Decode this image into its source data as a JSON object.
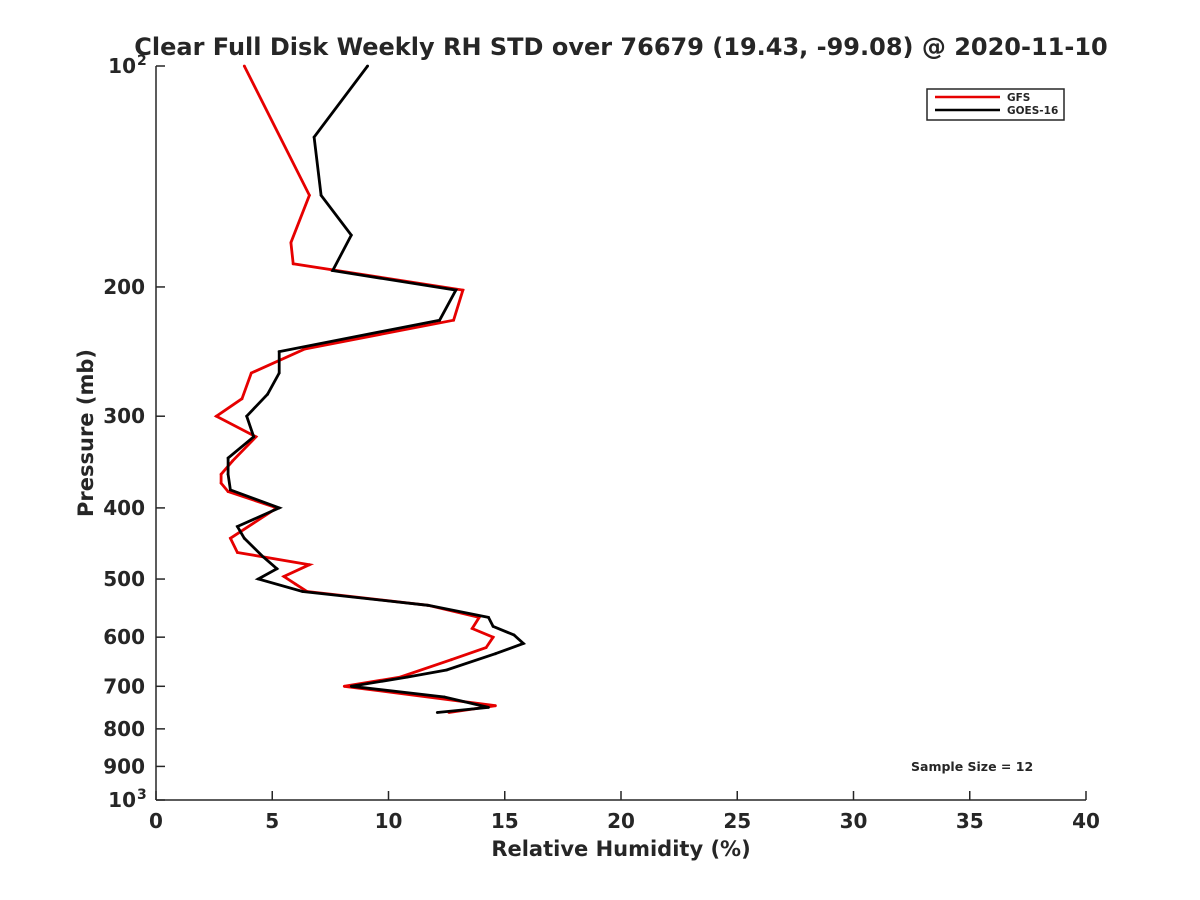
{
  "chart_data": {
    "type": "line",
    "title": "Clear Full Disk Weekly RH STD over 76679 (19.43, -99.08) @ 2020-11-10",
    "xlabel": "Relative Humidity (%)",
    "ylabel": "Pressure (mb)",
    "xlim": [
      0,
      40
    ],
    "ylim": [
      100,
      1000
    ],
    "y_scale": "log",
    "y_reversed": true,
    "x_ticks": [
      {
        "value": 0,
        "label": "0"
      },
      {
        "value": 5,
        "label": "5"
      },
      {
        "value": 10,
        "label": "10"
      },
      {
        "value": 15,
        "label": "15"
      },
      {
        "value": 20,
        "label": "20"
      },
      {
        "value": 25,
        "label": "25"
      },
      {
        "value": 30,
        "label": "30"
      },
      {
        "value": 35,
        "label": "35"
      },
      {
        "value": 40,
        "label": "40"
      }
    ],
    "y_ticks": [
      {
        "value": 100,
        "label": "10",
        "sup": "2"
      },
      {
        "value": 200,
        "label": "200",
        "sup": ""
      },
      {
        "value": 300,
        "label": "300",
        "sup": ""
      },
      {
        "value": 400,
        "label": "400",
        "sup": ""
      },
      {
        "value": 500,
        "label": "500",
        "sup": ""
      },
      {
        "value": 600,
        "label": "600",
        "sup": ""
      },
      {
        "value": 700,
        "label": "700",
        "sup": ""
      },
      {
        "value": 800,
        "label": "800",
        "sup": ""
      },
      {
        "value": 900,
        "label": "900",
        "sup": ""
      },
      {
        "value": 1000,
        "label": "10",
        "sup": "3"
      }
    ],
    "grid": false,
    "legend_position": "top-right",
    "annotation": "Sample Size = 12",
    "series": [
      {
        "name": "GFS",
        "color": "#e60000",
        "points": [
          [
            3.8,
            100
          ],
          [
            6.6,
            150
          ],
          [
            5.8,
            174
          ],
          [
            5.9,
            186
          ],
          [
            13.2,
            202
          ],
          [
            12.8,
            222
          ],
          [
            6.4,
            243
          ],
          [
            4.1,
            262
          ],
          [
            3.7,
            284
          ],
          [
            2.6,
            300
          ],
          [
            4.3,
            320
          ],
          [
            3.3,
            345
          ],
          [
            2.8,
            360
          ],
          [
            2.8,
            370
          ],
          [
            3.1,
            380
          ],
          [
            5.2,
            400
          ],
          [
            3.2,
            440
          ],
          [
            3.5,
            460
          ],
          [
            6.6,
            478
          ],
          [
            5.5,
            496
          ],
          [
            6.0,
            508
          ],
          [
            6.5,
            520
          ],
          [
            11.7,
            543
          ],
          [
            13.9,
            564
          ],
          [
            13.6,
            584
          ],
          [
            14.5,
            600
          ],
          [
            14.2,
            620
          ],
          [
            12.7,
            644
          ],
          [
            10.5,
            680
          ],
          [
            8.1,
            700
          ],
          [
            14.6,
            744
          ],
          [
            12.6,
            760
          ]
        ]
      },
      {
        "name": "GOES-16",
        "color": "#000000",
        "points": [
          [
            9.1,
            100
          ],
          [
            6.8,
            125
          ],
          [
            7.1,
            150
          ],
          [
            8.4,
            170
          ],
          [
            7.6,
            190
          ],
          [
            12.9,
            202
          ],
          [
            12.2,
            222
          ],
          [
            5.3,
            245
          ],
          [
            5.3,
            262
          ],
          [
            4.8,
            280
          ],
          [
            3.9,
            300
          ],
          [
            4.2,
            320
          ],
          [
            3.1,
            342
          ],
          [
            3.1,
            360
          ],
          [
            3.2,
            378
          ],
          [
            5.3,
            400
          ],
          [
            3.5,
            424
          ],
          [
            3.8,
            440
          ],
          [
            4.6,
            466
          ],
          [
            5.2,
            484
          ],
          [
            4.4,
            500
          ],
          [
            6.3,
            520
          ],
          [
            11.7,
            543
          ],
          [
            14.3,
            564
          ],
          [
            14.5,
            580
          ],
          [
            15.4,
            596
          ],
          [
            15.8,
            612
          ],
          [
            14.6,
            632
          ],
          [
            12.5,
            665
          ],
          [
            10.8,
            680
          ],
          [
            8.4,
            700
          ],
          [
            12.4,
            724
          ],
          [
            14.3,
            748
          ],
          [
            12.1,
            760
          ]
        ]
      }
    ]
  }
}
